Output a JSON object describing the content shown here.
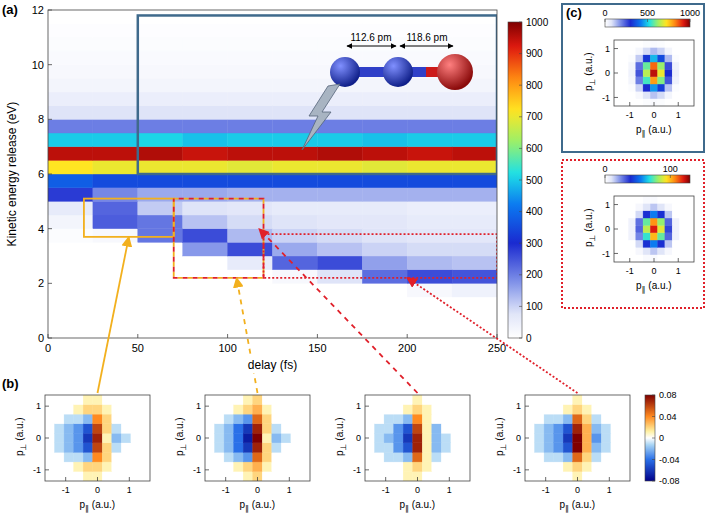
{
  "chart_data": [
    {
      "type": "heatmap",
      "panel_label": "(a)",
      "x_label": "delay (fs)",
      "y_label": "Kinetic energy release (eV)",
      "xlim": [
        0,
        250
      ],
      "xticks": [
        0,
        50,
        100,
        150,
        200,
        250
      ],
      "ylim": [
        0,
        12
      ],
      "yticks": [
        0,
        2,
        4,
        6,
        8,
        10,
        12
      ],
      "x_bins": [
        0,
        25,
        50,
        75,
        100,
        125,
        150,
        175,
        200,
        225,
        250
      ],
      "y_bins": [
        0,
        0.5,
        1,
        1.5,
        2,
        2.5,
        3,
        3.5,
        4,
        4.5,
        5,
        5.5,
        6,
        6.5,
        7,
        7.5,
        8,
        8.5,
        9,
        9.5,
        10,
        10.5,
        11,
        11.5,
        12
      ],
      "cells": [
        [
          0,
          0,
          0,
          0,
          0,
          0,
          0,
          0,
          0,
          0
        ],
        [
          0,
          0,
          0,
          0,
          0,
          0,
          0,
          0,
          0,
          0
        ],
        [
          0,
          0,
          0,
          0,
          0,
          0,
          0,
          0,
          0,
          0
        ],
        [
          0,
          0,
          0,
          0,
          0,
          0,
          0,
          0,
          20,
          40
        ],
        [
          0,
          0,
          0,
          0,
          0,
          20,
          80,
          220,
          260,
          250
        ],
        [
          0,
          0,
          0,
          0,
          60,
          230,
          260,
          160,
          130,
          120
        ],
        [
          0,
          0,
          0,
          170,
          260,
          150,
          120,
          100,
          90,
          90
        ],
        [
          10,
          20,
          210,
          260,
          130,
          100,
          90,
          80,
          70,
          70
        ],
        [
          30,
          240,
          210,
          120,
          90,
          80,
          70,
          70,
          60,
          60
        ],
        [
          60,
          230,
          110,
          80,
          70,
          60,
          60,
          60,
          50,
          50
        ],
        [
          280,
          190,
          150,
          150,
          140,
          140,
          140,
          140,
          140,
          140
        ],
        [
          380,
          350,
          350,
          350,
          350,
          350,
          350,
          350,
          350,
          350
        ],
        [
          720,
          700,
          700,
          700,
          690,
          700,
          700,
          690,
          700,
          700
        ],
        [
          950,
          950,
          960,
          940,
          950,
          950,
          960,
          950,
          940,
          950
        ],
        [
          500,
          500,
          510,
          490,
          500,
          500,
          500,
          490,
          500,
          500
        ],
        [
          200,
          200,
          200,
          200,
          200,
          200,
          200,
          200,
          200,
          200
        ],
        [
          80,
          80,
          80,
          80,
          80,
          80,
          80,
          80,
          80,
          80
        ],
        [
          50,
          50,
          50,
          50,
          50,
          50,
          50,
          50,
          50,
          50
        ],
        [
          30,
          30,
          30,
          30,
          30,
          30,
          30,
          30,
          30,
          30
        ],
        [
          20,
          20,
          20,
          20,
          20,
          20,
          20,
          20,
          20,
          20
        ],
        [
          15,
          15,
          15,
          15,
          15,
          15,
          15,
          15,
          15,
          15
        ],
        [
          10,
          10,
          10,
          10,
          10,
          10,
          10,
          10,
          10,
          10
        ],
        [
          5,
          5,
          5,
          5,
          5,
          5,
          5,
          5,
          5,
          5
        ],
        [
          0,
          0,
          0,
          0,
          0,
          0,
          0,
          0,
          0,
          0
        ]
      ],
      "colorbar": {
        "range": [
          0,
          1000
        ],
        "ticks": [
          0,
          100,
          200,
          300,
          400,
          500,
          600,
          700,
          800,
          900,
          1000
        ]
      },
      "regions": [
        {
          "x": [
            20,
            70
          ],
          "y": [
            3.7,
            5.1
          ],
          "color": "#f2b01e",
          "line_style": "solid"
        },
        {
          "x": [
            70,
            120
          ],
          "y": [
            2.2,
            5.1
          ],
          "color": "#f2b01e",
          "line_style": "dashed"
        },
        {
          "x": [
            70,
            120
          ],
          "y": [
            2.2,
            5.1
          ],
          "color": "#e0202a",
          "line_style": "dashed"
        },
        {
          "x": [
            120,
            250
          ],
          "y": [
            2.2,
            3.8
          ],
          "color": "#e0202a",
          "line_style": "dotted"
        },
        {
          "x": [
            50,
            250
          ],
          "y": [
            6,
            11.8
          ],
          "color": "#3f6a8c",
          "line_style": "solid"
        }
      ],
      "annotations": [
        "112.6 pm",
        "118.6 pm"
      ]
    },
    {
      "type": "heatmap",
      "panel_label": "(b)",
      "x_label": "p∥ (a.u.)",
      "y_label": "p⊥ (a.u.)",
      "xlim": [
        -1.65,
        1.65
      ],
      "xticks": [
        -1,
        0,
        1
      ],
      "ylim": [
        -1.35,
        1.35
      ],
      "yticks": [
        -1,
        0,
        1
      ],
      "x_bins": [
        -1.65,
        -1.35,
        -1.05,
        -0.75,
        -0.45,
        -0.15,
        0.15,
        0.45,
        0.75,
        1.05,
        1.35,
        1.65
      ],
      "y_bins": [
        -1.35,
        -1.05,
        -0.75,
        -0.45,
        -0.15,
        0.15,
        0.45,
        0.75,
        1.05,
        1.35
      ],
      "maps": [
        [
          [
            0,
            0,
            0,
            0,
            0.01,
            0.01,
            0,
            0,
            0,
            0,
            0
          ],
          [
            0,
            0,
            0,
            0.01,
            0.02,
            0.02,
            0.01,
            0,
            0,
            0,
            0
          ],
          [
            0,
            0,
            -0.01,
            -0.01,
            -0.02,
            0.04,
            0.02,
            0,
            0,
            0,
            0
          ],
          [
            0,
            -0.01,
            -0.02,
            -0.03,
            -0.05,
            0.06,
            0.02,
            -0.01,
            0,
            0,
            0
          ],
          [
            0,
            -0.01,
            -0.02,
            -0.03,
            -0.06,
            0.07,
            0.01,
            -0.02,
            -0.01,
            0,
            0
          ],
          [
            0,
            -0.01,
            -0.02,
            -0.03,
            -0.05,
            0.06,
            0.02,
            -0.01,
            0,
            0,
            0
          ],
          [
            0,
            0,
            -0.01,
            -0.01,
            -0.02,
            0.04,
            0.02,
            0,
            0,
            0,
            0
          ],
          [
            0,
            0,
            0,
            0.01,
            0.02,
            0.02,
            0.01,
            0,
            0,
            0,
            0
          ],
          [
            0,
            0,
            0,
            0,
            0.01,
            0.01,
            0,
            0,
            0,
            0,
            0
          ]
        ],
        [
          [
            0,
            0,
            0,
            0,
            0.01,
            0.02,
            0,
            0,
            0,
            0,
            0
          ],
          [
            0,
            0,
            0,
            0.01,
            0.02,
            0.03,
            0.01,
            0,
            0,
            0,
            0
          ],
          [
            0,
            0,
            -0.01,
            -0.02,
            -0.03,
            0.05,
            0.02,
            0,
            0,
            0,
            0
          ],
          [
            0,
            -0.01,
            -0.02,
            -0.04,
            -0.06,
            0.07,
            0.02,
            -0.01,
            0,
            0,
            0
          ],
          [
            0,
            -0.01,
            -0.02,
            -0.04,
            -0.07,
            0.08,
            0.01,
            -0.02,
            -0.01,
            0,
            0
          ],
          [
            0,
            -0.01,
            -0.02,
            -0.04,
            -0.06,
            0.07,
            0.02,
            -0.01,
            0,
            0,
            0
          ],
          [
            0,
            0,
            -0.01,
            -0.02,
            -0.03,
            0.05,
            0.02,
            0,
            0,
            0,
            0
          ],
          [
            0,
            0,
            0,
            0.01,
            0.02,
            0.03,
            0.01,
            0,
            0,
            0,
            0
          ],
          [
            0,
            0,
            0,
            0,
            0.01,
            0.02,
            0,
            0,
            0,
            0,
            0
          ]
        ],
        [
          [
            0,
            0,
            0,
            0,
            0.01,
            0.01,
            0,
            0,
            0,
            0,
            0
          ],
          [
            0,
            0,
            0,
            0,
            0.01,
            0.02,
            0.01,
            0,
            0,
            0,
            0
          ],
          [
            0,
            0,
            -0.01,
            -0.01,
            -0.02,
            0.05,
            0.01,
            -0.01,
            0,
            0,
            0
          ],
          [
            0,
            -0.01,
            -0.01,
            -0.03,
            -0.05,
            0.07,
            0.01,
            -0.02,
            -0.01,
            0,
            0
          ],
          [
            0,
            -0.01,
            -0.02,
            -0.03,
            -0.06,
            0.07,
            0.01,
            -0.02,
            -0.01,
            0,
            0
          ],
          [
            0,
            -0.01,
            -0.01,
            -0.03,
            -0.05,
            0.06,
            0.01,
            -0.02,
            0,
            0,
            0
          ],
          [
            0,
            0,
            -0.01,
            -0.01,
            -0.02,
            0.04,
            0.01,
            0,
            0,
            0,
            0
          ],
          [
            0,
            0,
            0,
            0,
            0.01,
            0.02,
            0.01,
            0,
            0,
            0,
            0
          ],
          [
            0,
            0,
            0,
            0,
            0,
            0.01,
            0,
            0,
            0,
            0,
            0
          ]
        ],
        [
          [
            0,
            0,
            0,
            0,
            0,
            0.01,
            0,
            0,
            0,
            0,
            0
          ],
          [
            0,
            0,
            0,
            0,
            0.01,
            0.02,
            0.01,
            0,
            0,
            0,
            0
          ],
          [
            0,
            0,
            -0.01,
            -0.01,
            -0.02,
            0.05,
            0.02,
            -0.01,
            0,
            0,
            0
          ],
          [
            0,
            -0.01,
            -0.02,
            -0.03,
            -0.05,
            0.08,
            0.03,
            -0.02,
            -0.01,
            0,
            0
          ],
          [
            0,
            -0.01,
            -0.02,
            -0.03,
            -0.06,
            0.08,
            0.03,
            -0.03,
            -0.01,
            0,
            0
          ],
          [
            0,
            -0.01,
            -0.02,
            -0.03,
            -0.05,
            0.07,
            0.03,
            -0.02,
            -0.01,
            0,
            0
          ],
          [
            0,
            0,
            -0.01,
            -0.01,
            -0.02,
            0.05,
            0.02,
            -0.01,
            0,
            0,
            0
          ],
          [
            0,
            0,
            0,
            0,
            0.01,
            0.02,
            0.01,
            0,
            0,
            0,
            0
          ],
          [
            0,
            0,
            0,
            0,
            0,
            0.01,
            0,
            0,
            0,
            0,
            0
          ]
        ]
      ],
      "colorbar": {
        "range": [
          -0.08,
          0.08
        ],
        "ticks": [
          -0.08,
          -0.04,
          0,
          0.04,
          0.08
        ]
      }
    },
    {
      "type": "heatmap",
      "panel_label": "(c)",
      "x_label": "p∥ (a.u.)",
      "y_label": "p⊥ (a.u.)",
      "xlim": [
        -1.65,
        1.65
      ],
      "xticks": [
        -1,
        0,
        1
      ],
      "ylim": [
        -1.35,
        1.35
      ],
      "yticks": [
        -1,
        0,
        1
      ],
      "x_bins": [
        -1.65,
        -1.35,
        -1.05,
        -0.75,
        -0.45,
        -0.15,
        0.15,
        0.45,
        0.75,
        1.05,
        1.35,
        1.65
      ],
      "y_bins": [
        -1.35,
        -1.05,
        -0.75,
        -0.45,
        -0.15,
        0.15,
        0.45,
        0.75,
        1.05,
        1.35
      ],
      "maps": [
        {
          "cells": [
            [
              0,
              0,
              0,
              0,
              10,
              15,
              10,
              0,
              0,
              0,
              0
            ],
            [
              0,
              0,
              0,
              20,
              80,
              120,
              90,
              30,
              0,
              0,
              0
            ],
            [
              0,
              0,
              10,
              100,
              300,
              450,
              330,
              120,
              10,
              0,
              0
            ],
            [
              0,
              0,
              30,
              200,
              550,
              800,
              600,
              250,
              40,
              0,
              0
            ],
            [
              0,
              0,
              40,
              250,
              650,
              950,
              700,
              300,
              50,
              0,
              0
            ],
            [
              0,
              0,
              30,
              220,
              580,
              850,
              620,
              260,
              40,
              0,
              0
            ],
            [
              0,
              0,
              10,
              110,
              320,
              480,
              350,
              130,
              10,
              0,
              0
            ],
            [
              0,
              0,
              0,
              25,
              90,
              130,
              100,
              30,
              0,
              0,
              0
            ],
            [
              0,
              0,
              0,
              0,
              10,
              15,
              10,
              0,
              0,
              0,
              0
            ]
          ],
          "colorbar": {
            "range": [
              0,
              1000
            ],
            "ticks": [
              0,
              500,
              1000
            ]
          }
        },
        {
          "cells": [
            [
              0,
              0,
              0,
              0,
              2,
              2,
              0,
              0,
              0,
              0,
              0
            ],
            [
              0,
              0,
              0,
              3,
              10,
              15,
              10,
              3,
              0,
              0,
              0
            ],
            [
              0,
              0,
              0,
              12,
              40,
              55,
              40,
              15,
              0,
              0,
              0
            ],
            [
              0,
              0,
              5,
              25,
              70,
              100,
              75,
              30,
              5,
              0,
              0
            ],
            [
              0,
              0,
              5,
              30,
              85,
              120,
              90,
              35,
              5,
              0,
              0
            ],
            [
              0,
              0,
              5,
              28,
              75,
              105,
              80,
              30,
              5,
              0,
              0
            ],
            [
              0,
              0,
              0,
              12,
              40,
              55,
              40,
              15,
              0,
              0,
              0
            ],
            [
              0,
              0,
              0,
              3,
              10,
              15,
              10,
              3,
              0,
              0,
              0
            ],
            [
              0,
              0,
              0,
              0,
              2,
              2,
              0,
              0,
              0,
              0,
              0
            ]
          ],
          "colorbar": {
            "range": [
              0,
              130
            ],
            "ticks": [
              0,
              100
            ]
          }
        }
      ]
    }
  ]
}
